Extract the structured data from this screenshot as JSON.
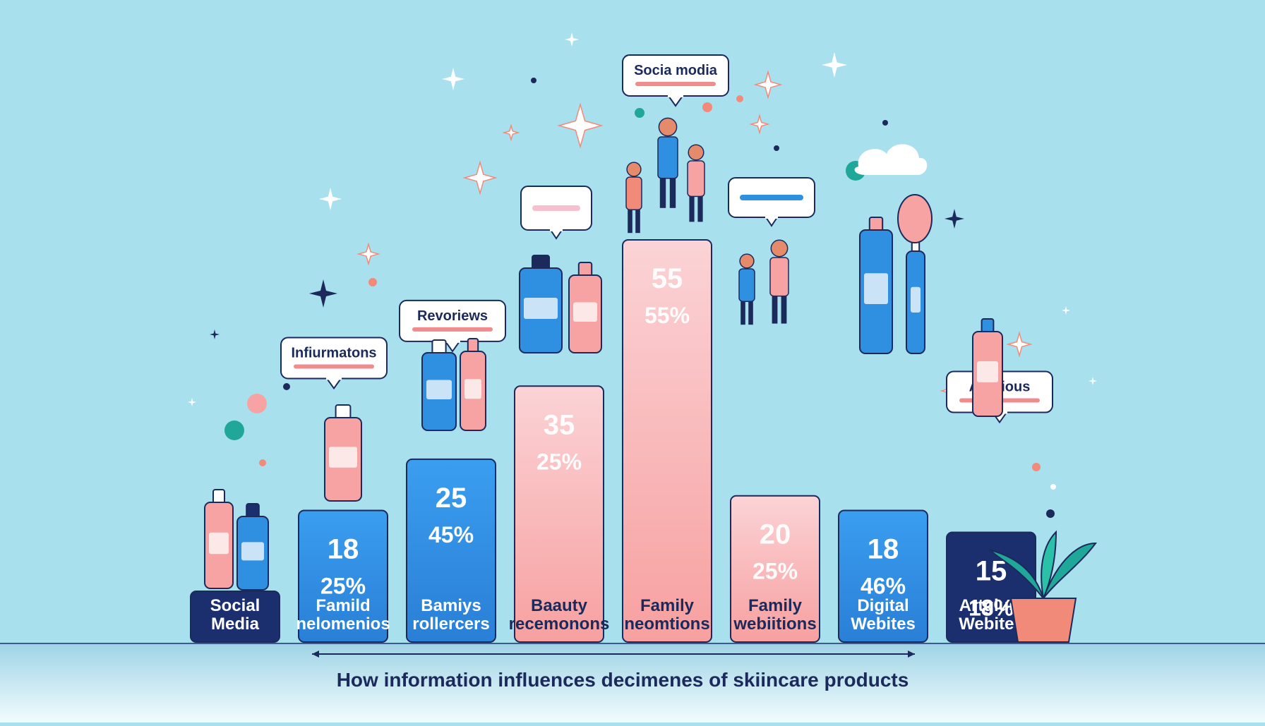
{
  "chart_data": {
    "type": "bar",
    "title": "",
    "caption": "How  information influences decimenes of skiincare products",
    "categories": [
      "Social Media",
      "Famild nelomenios",
      "Bamiys rollercers",
      "Baauty recemonons",
      "Family neomtions",
      "Family webiitions",
      "Digital Webites",
      "Artgius/ Webites"
    ],
    "value_labels": [
      [
        "",
        ""
      ],
      [
        "18",
        "25%"
      ],
      [
        "25",
        "45%"
      ],
      [
        "35",
        "25%"
      ],
      [
        "55",
        "55%"
      ],
      [
        "20",
        "25%"
      ],
      [
        "18",
        "46%"
      ],
      [
        "15",
        "18%"
      ]
    ],
    "values": [
      5,
      18,
      25,
      35,
      55,
      20,
      18,
      15
    ],
    "ylim": [
      0,
      55
    ],
    "bar_colors": [
      "#1b2f6e",
      "#2f8fe0",
      "#2f8fe0",
      "#f7a3a3",
      "#f9c3c6",
      "#f7a8ab",
      "#2f8fe0",
      "#1b2f6e"
    ],
    "callouts": [
      {
        "text": "Infiurmatons",
        "bar": 1
      },
      {
        "text": "Revoriews",
        "bar": 2
      },
      {
        "text": "Socia modia",
        "bar": 4
      },
      {
        "text": "Articious",
        "bar": 7
      }
    ],
    "legend": "none",
    "grid": false
  }
}
